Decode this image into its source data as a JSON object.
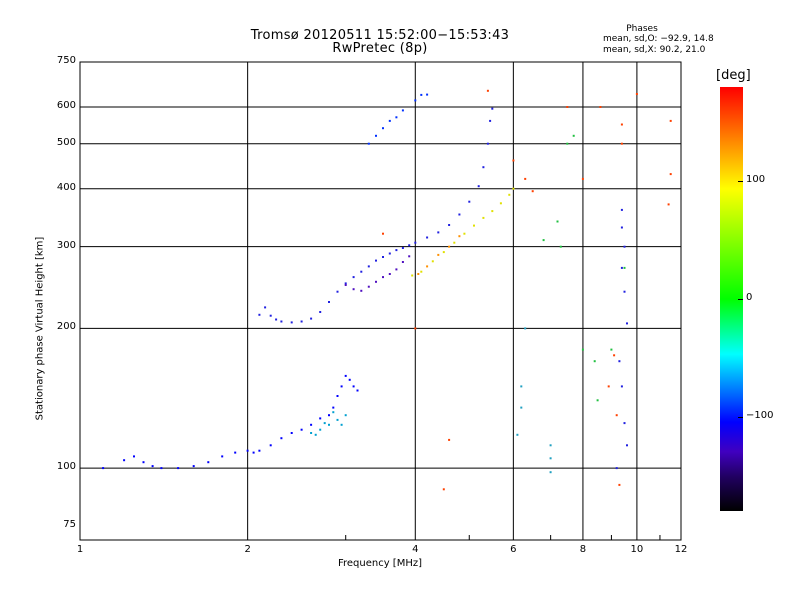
{
  "header": {
    "line1": "Tromsø 20120511 15:52:00−15:53:43",
    "line2": "RwPretec (8p)"
  },
  "phases_box": {
    "heading": "Phases",
    "line1": "mean, sd,O: −92.9, 14.8",
    "line2": "mean, sd,X:  90.2, 21.0"
  },
  "colorbar": {
    "title": "[deg]",
    "tick_labels": [
      "100",
      "0",
      "−100"
    ],
    "tick_values": [
      100,
      0,
      -100
    ],
    "range": [
      -180,
      180
    ]
  },
  "chart_data": {
    "type": "scatter",
    "xlabel": "Frequency [MHz]",
    "ylabel": "Stationary phase Virtual Height [km]",
    "xscale": "log",
    "yscale": "log",
    "xlim": [
      1,
      12
    ],
    "ylim": [
      70,
      750
    ],
    "xticks": [
      1,
      2,
      4,
      6,
      8,
      10,
      12
    ],
    "xtick_labels": [
      "1",
      "2",
      "4",
      "6",
      "8",
      "10",
      "12"
    ],
    "yticks": [
      75,
      100,
      200,
      300,
      400,
      500,
      600,
      750
    ],
    "ytick_labels": [
      "75",
      "100",
      "200",
      "300",
      "400",
      "500",
      "600",
      "750"
    ],
    "grid": true,
    "series": [
      {
        "points": [
          [
            1.1,
            100
          ],
          [
            1.2,
            104
          ],
          [
            1.25,
            106
          ],
          [
            1.3,
            103
          ],
          [
            1.35,
            101
          ],
          [
            1.4,
            100
          ],
          [
            1.5,
            100
          ],
          [
            1.6,
            101
          ],
          [
            1.7,
            103
          ],
          [
            1.8,
            106
          ],
          [
            1.9,
            108
          ],
          [
            2.0,
            109
          ],
          [
            2.05,
            108
          ],
          [
            2.1,
            109
          ],
          [
            2.2,
            112
          ],
          [
            2.3,
            116
          ],
          [
            2.4,
            119
          ],
          [
            2.5,
            121
          ],
          [
            2.6,
            124
          ],
          [
            2.7,
            128
          ],
          [
            2.8,
            130
          ],
          [
            2.85,
            135
          ],
          [
            2.9,
            143
          ],
          [
            2.95,
            150
          ],
          [
            3.0,
            158
          ],
          [
            3.05,
            155
          ],
          [
            3.1,
            150
          ],
          [
            3.15,
            147
          ]
        ],
        "color": "#0000ff"
      },
      {
        "points": [
          [
            2.6,
            119
          ],
          [
            2.65,
            118
          ],
          [
            2.7,
            121
          ],
          [
            2.75,
            125
          ],
          [
            2.8,
            124
          ],
          [
            2.85,
            132
          ],
          [
            2.9,
            127
          ],
          [
            2.95,
            124
          ],
          [
            3.0,
            130
          ]
        ],
        "color": "#00a0d0"
      },
      {
        "points": [
          [
            2.1,
            214
          ],
          [
            2.15,
            222
          ],
          [
            2.2,
            213
          ],
          [
            2.25,
            209
          ],
          [
            2.3,
            207
          ],
          [
            2.4,
            206
          ],
          [
            2.5,
            207
          ],
          [
            2.6,
            210
          ],
          [
            2.7,
            217
          ],
          [
            2.8,
            228
          ],
          [
            2.9,
            240
          ],
          [
            3.0,
            250
          ],
          [
            3.1,
            258
          ],
          [
            3.2,
            265
          ],
          [
            3.3,
            272
          ],
          [
            3.4,
            280
          ],
          [
            3.5,
            285
          ],
          [
            3.6,
            290
          ],
          [
            3.7,
            295
          ],
          [
            3.8,
            298
          ],
          [
            3.9,
            302
          ],
          [
            4.0,
            306
          ],
          [
            4.2,
            314
          ],
          [
            4.4,
            322
          ],
          [
            4.6,
            334
          ],
          [
            4.8,
            352
          ],
          [
            5.0,
            375
          ],
          [
            5.2,
            405
          ],
          [
            5.3,
            445
          ],
          [
            5.4,
            500
          ],
          [
            5.45,
            560
          ],
          [
            5.5,
            595
          ]
        ],
        "color": "#2020e0"
      },
      {
        "points": [
          [
            3.0,
            248
          ],
          [
            3.1,
            243
          ],
          [
            3.2,
            241
          ],
          [
            3.3,
            246
          ],
          [
            3.4,
            252
          ],
          [
            3.5,
            258
          ],
          [
            3.6,
            262
          ],
          [
            3.7,
            268
          ],
          [
            3.8,
            278
          ],
          [
            3.9,
            286
          ]
        ],
        "color": "#5010c0"
      },
      {
        "points": [
          [
            3.3,
            500
          ],
          [
            3.4,
            520
          ],
          [
            3.5,
            540
          ],
          [
            3.6,
            560
          ],
          [
            3.7,
            570
          ],
          [
            3.8,
            590
          ],
          [
            4.0,
            620
          ],
          [
            4.1,
            637
          ],
          [
            4.2,
            638
          ]
        ],
        "color": "#0030ff"
      },
      {
        "points": [
          [
            3.95,
            260
          ],
          [
            4.1,
            265
          ],
          [
            4.3,
            279
          ],
          [
            4.5,
            292
          ],
          [
            4.7,
            306
          ],
          [
            4.9,
            320
          ],
          [
            5.1,
            333
          ],
          [
            5.3,
            346
          ],
          [
            5.5,
            358
          ],
          [
            5.7,
            372
          ],
          [
            5.9,
            388
          ],
          [
            6.0,
            400
          ]
        ],
        "color": "#e0e000"
      },
      {
        "points": [
          [
            4.05,
            262
          ],
          [
            4.2,
            272
          ],
          [
            4.4,
            288
          ],
          [
            4.6,
            300
          ],
          [
            4.8,
            316
          ]
        ],
        "color": "#ff9000"
      },
      {
        "points": [
          [
            6.3,
            200
          ],
          [
            6.2,
            150
          ],
          [
            6.1,
            118
          ],
          [
            6.2,
            135
          ],
          [
            7.0,
            112
          ],
          [
            7.0,
            105
          ],
          [
            7.0,
            98
          ]
        ],
        "color": "#20a0c0"
      },
      {
        "points": [
          [
            9.4,
            360
          ],
          [
            9.4,
            330
          ],
          [
            9.5,
            300
          ],
          [
            9.4,
            270
          ],
          [
            9.5,
            240
          ],
          [
            9.6,
            205
          ],
          [
            9.3,
            170
          ],
          [
            9.4,
            150
          ],
          [
            9.5,
            125
          ],
          [
            9.6,
            112
          ],
          [
            9.2,
            100
          ]
        ],
        "color": "#2020e0"
      },
      {
        "points": [
          [
            6.0,
            460
          ],
          [
            6.3,
            420
          ],
          [
            6.5,
            395
          ],
          [
            7.5,
            600
          ],
          [
            8.6,
            600
          ],
          [
            8.0,
            420
          ],
          [
            9.4,
            550
          ],
          [
            9.4,
            500
          ],
          [
            10.0,
            640
          ],
          [
            11.5,
            560
          ],
          [
            11.5,
            430
          ],
          [
            11.4,
            370
          ],
          [
            9.2,
            130
          ],
          [
            9.1,
            175
          ],
          [
            8.9,
            150
          ],
          [
            9.3,
            92
          ],
          [
            4.5,
            90
          ],
          [
            4.6,
            115
          ],
          [
            4.0,
            200
          ],
          [
            3.5,
            320
          ],
          [
            5.4,
            650
          ]
        ],
        "color": "#ff4000"
      },
      {
        "points": [
          [
            7.5,
            500
          ],
          [
            7.7,
            520
          ],
          [
            8.4,
            170
          ],
          [
            8.5,
            140
          ],
          [
            7.2,
            340
          ],
          [
            7.3,
            300
          ],
          [
            6.8,
            310
          ],
          [
            8.0,
            180
          ],
          [
            9.0,
            180
          ],
          [
            9.5,
            270
          ]
        ],
        "color": "#20c040"
      }
    ]
  }
}
